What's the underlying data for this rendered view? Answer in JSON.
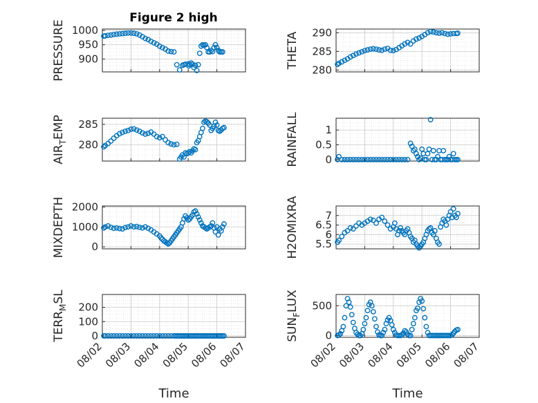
{
  "figure": {
    "title": "Figure 2 high",
    "marker_color": "#0072BD"
  },
  "chart_data": [
    {
      "type": "scatter",
      "ylabel": "PRESSURE",
      "title": "Figure 2 high",
      "ylim": [
        855,
        1005
      ],
      "yticks": [
        900,
        950,
        1000
      ],
      "xlim": [
        "08/02",
        "08/07"
      ],
      "xticks": [
        "08/02",
        "08/03",
        "08/04",
        "08/05",
        "08/06",
        "08/07"
      ],
      "show_xticklabels": false,
      "grid": true,
      "minor_grid": true,
      "x_days": [
        0.05,
        0.1,
        0.2,
        0.3,
        0.4,
        0.5,
        0.6,
        0.7,
        0.8,
        0.9,
        1.0,
        1.1,
        1.2,
        1.3,
        1.4,
        1.5,
        1.6,
        1.7,
        1.8,
        1.9,
        2.0,
        2.1,
        2.2,
        2.3,
        2.4,
        2.5,
        2.6,
        2.7,
        2.8,
        2.85,
        2.9,
        3.0,
        3.02,
        3.05,
        3.1,
        3.15,
        3.2,
        3.25,
        3.3,
        3.35,
        3.4,
        3.45,
        3.5,
        3.55,
        3.6,
        3.65,
        3.7,
        3.75,
        3.8,
        3.85,
        3.9,
        3.95,
        4.0,
        4.05,
        4.1,
        4.15,
        4.2
      ],
      "y": [
        980,
        981,
        983,
        984,
        986,
        987,
        988,
        989,
        990,
        991,
        991,
        990,
        988,
        984,
        978,
        972,
        968,
        962,
        957,
        952,
        945,
        940,
        935,
        928,
        926,
        925,
        880,
        862,
        878,
        880,
        882,
        883,
        876,
        881,
        886,
        882,
        870,
        878,
        860,
        880,
        920,
        945,
        950,
        948,
        950,
        940,
        925,
        925,
        930,
        926,
        940,
        950,
        940,
        930,
        925,
        925,
        925
      ]
    },
    {
      "type": "scatter",
      "ylabel": "THETA",
      "ylim": [
        279.5,
        291
      ],
      "yticks": [
        280,
        285,
        290
      ],
      "xlim": [
        "08/02",
        "08/07"
      ],
      "xticks": [
        "08/02",
        "08/03",
        "08/04",
        "08/05",
        "08/06",
        "08/07"
      ],
      "show_xticklabels": false,
      "grid": true,
      "minor_grid": true,
      "x_days": [
        0.05,
        0.1,
        0.2,
        0.3,
        0.4,
        0.5,
        0.6,
        0.7,
        0.8,
        0.9,
        1.0,
        1.1,
        1.2,
        1.3,
        1.4,
        1.5,
        1.6,
        1.7,
        1.8,
        1.9,
        2.0,
        2.1,
        2.2,
        2.3,
        2.4,
        2.5,
        2.6,
        2.7,
        2.8,
        2.9,
        3.0,
        3.1,
        3.2,
        3.3,
        3.4,
        3.5,
        3.6,
        3.7,
        3.8,
        3.9,
        4.0,
        4.1,
        4.2,
        4.25
      ],
      "y": [
        281.5,
        281.8,
        282.2,
        282.6,
        283.0,
        283.5,
        283.9,
        284.3,
        284.6,
        284.9,
        285.2,
        285.4,
        285.6,
        285.7,
        285.6,
        285.4,
        285.3,
        285.6,
        285.8,
        285.3,
        285.2,
        285.5,
        286.0,
        286.5,
        287.0,
        287.4,
        287.0,
        287.8,
        288.3,
        288.6,
        289.0,
        289.5,
        290.0,
        290.3,
        290.2,
        290.0,
        289.9,
        290.0,
        289.8,
        289.6,
        289.7,
        289.8,
        289.8,
        289.9
      ]
    },
    {
      "type": "scatter",
      "ylabel": "AIR_TEMP",
      "ylim": [
        276,
        286.5
      ],
      "yticks": [
        280,
        285
      ],
      "xlim": [
        "08/02",
        "08/07"
      ],
      "xticks": [
        "08/02",
        "08/03",
        "08/04",
        "08/05",
        "08/06",
        "08/07"
      ],
      "show_xticklabels": false,
      "grid": true,
      "minor_grid": true,
      "x_days": [
        0.05,
        0.1,
        0.2,
        0.3,
        0.4,
        0.5,
        0.6,
        0.7,
        0.8,
        0.9,
        1.0,
        1.1,
        1.2,
        1.3,
        1.4,
        1.5,
        1.6,
        1.7,
        1.8,
        1.9,
        2.0,
        2.1,
        2.2,
        2.3,
        2.4,
        2.5,
        2.6,
        2.7,
        2.75,
        2.8,
        2.85,
        2.9,
        2.95,
        3.0,
        3.05,
        3.1,
        3.15,
        3.2,
        3.25,
        3.3,
        3.35,
        3.4,
        3.45,
        3.5,
        3.55,
        3.6,
        3.65,
        3.7,
        3.75,
        3.8,
        3.85,
        3.9,
        3.95,
        4.0,
        4.05,
        4.1,
        4.15,
        4.2,
        4.25
      ],
      "y": [
        279.5,
        279.8,
        280.3,
        280.9,
        281.6,
        282.2,
        282.7,
        283.0,
        283.3,
        283.5,
        283.8,
        283.9,
        283.6,
        283.3,
        282.9,
        282.6,
        282.8,
        283.1,
        282.6,
        282.0,
        281.7,
        282.0,
        281.2,
        280.5,
        280.2,
        280.0,
        280.1,
        276.5,
        277.0,
        277.5,
        277.0,
        278.0,
        277.8,
        278.0,
        278.3,
        278.0,
        278.5,
        279.0,
        278.8,
        280.5,
        281.0,
        282.0,
        283.0,
        284.0,
        285.5,
        285.8,
        285.6,
        285.3,
        284.8,
        283.5,
        284.0,
        284.5,
        285.5,
        284.8,
        283.5,
        283.3,
        283.6,
        284.0,
        284.2
      ]
    },
    {
      "type": "scatter",
      "ylabel": "MIXDEPTH",
      "ylim": [
        -100,
        2050
      ],
      "yticks": [
        0,
        1000,
        2000
      ],
      "xlim": [
        "08/02",
        "08/07"
      ],
      "xticks": [
        "08/02",
        "08/03",
        "08/04",
        "08/05",
        "08/06",
        "08/07"
      ],
      "show_xticklabels": false,
      "grid": true,
      "minor_grid": true,
      "x_days": [
        0.05,
        0.1,
        0.2,
        0.3,
        0.4,
        0.5,
        0.6,
        0.7,
        0.8,
        0.9,
        1.0,
        1.1,
        1.2,
        1.3,
        1.4,
        1.5,
        1.6,
        1.7,
        1.8,
        1.9,
        2.0,
        2.05,
        2.1,
        2.15,
        2.2,
        2.25,
        2.3,
        2.35,
        2.4,
        2.45,
        2.5,
        2.55,
        2.6,
        2.65,
        2.7,
        2.75,
        2.8,
        2.85,
        2.9,
        2.95,
        3.0,
        3.05,
        3.1,
        3.15,
        3.2,
        3.25,
        3.3,
        3.35,
        3.4,
        3.45,
        3.5,
        3.55,
        3.6,
        3.65,
        3.7,
        3.75,
        3.8,
        3.85,
        3.9,
        3.95,
        4.0,
        4.05,
        4.1,
        4.15,
        4.2,
        4.25
      ],
      "y": [
        950,
        1000,
        1050,
        980,
        930,
        950,
        920,
        900,
        970,
        1000,
        1050,
        1000,
        1020,
        980,
        950,
        1000,
        930,
        850,
        750,
        650,
        550,
        450,
        380,
        300,
        250,
        200,
        150,
        200,
        300,
        400,
        500,
        600,
        700,
        800,
        900,
        1000,
        1200,
        1400,
        1550,
        1450,
        1350,
        1400,
        1500,
        1600,
        1750,
        1800,
        1650,
        1500,
        1350,
        1200,
        1050,
        1000,
        950,
        900,
        950,
        1000,
        1050,
        1200,
        950,
        750,
        1000,
        600,
        900,
        800,
        1000,
        1150
      ]
    },
    {
      "type": "scatter",
      "ylabel": "H2OMIXRA",
      "ylim": [
        5.25,
        7.5
      ],
      "yticks": [
        5.5,
        6,
        6.5,
        7
      ],
      "xlim": [
        "08/02",
        "08/07"
      ],
      "xticks": [
        "08/02",
        "08/03",
        "08/04",
        "08/05",
        "08/06",
        "08/07"
      ],
      "show_xticklabels": false,
      "grid": true,
      "minor_grid": true,
      "x_days": [
        0.05,
        0.1,
        0.2,
        0.3,
        0.4,
        0.5,
        0.6,
        0.7,
        0.8,
        0.9,
        1.0,
        1.1,
        1.2,
        1.3,
        1.4,
        1.5,
        1.6,
        1.7,
        1.8,
        1.9,
        2.0,
        2.05,
        2.1,
        2.15,
        2.2,
        2.25,
        2.3,
        2.35,
        2.4,
        2.45,
        2.5,
        2.55,
        2.6,
        2.65,
        2.7,
        2.75,
        2.8,
        2.85,
        2.9,
        2.95,
        3.0,
        3.05,
        3.1,
        3.15,
        3.2,
        3.25,
        3.3,
        3.35,
        3.4,
        3.45,
        3.5,
        3.55,
        3.6,
        3.65,
        3.7,
        3.75,
        3.8,
        3.85,
        3.9,
        3.95,
        4.0,
        4.05,
        4.1,
        4.15,
        4.2,
        4.25
      ],
      "y": [
        5.6,
        5.7,
        5.9,
        6.1,
        6.2,
        6.35,
        6.3,
        6.45,
        6.6,
        6.5,
        6.6,
        6.7,
        6.8,
        6.75,
        6.6,
        6.8,
        6.9,
        6.7,
        6.5,
        6.3,
        6.4,
        6.6,
        6.3,
        6.0,
        6.2,
        6.35,
        6.2,
        6.1,
        6.0,
        6.2,
        6.3,
        6.1,
        5.9,
        5.8,
        5.6,
        5.7,
        5.5,
        5.4,
        5.3,
        5.4,
        5.5,
        5.6,
        5.8,
        6.0,
        6.2,
        6.3,
        6.35,
        6.1,
        6.0,
        6.2,
        5.8,
        5.6,
        5.5,
        6.4,
        6.6,
        6.8,
        6.7,
        6.5,
        6.8,
        7.0,
        7.2,
        6.9,
        7.35,
        7.0,
        6.9,
        7.1
      ]
    },
    {
      "type": "scatter",
      "ylabel": "RAINFALL",
      "ylim": [
        -0.05,
        1.4
      ],
      "yticks": [
        0,
        0.5,
        1
      ],
      "xlim": [
        "08/02",
        "08/07"
      ],
      "xticks": [
        "08/02",
        "08/03",
        "08/04",
        "08/05",
        "08/06",
        "08/07"
      ],
      "show_xticklabels": false,
      "grid": true,
      "minor_grid": true,
      "x_days": [
        0.05,
        0.1,
        0.2,
        0.3,
        0.4,
        0.5,
        0.6,
        0.7,
        0.8,
        0.9,
        1.0,
        1.1,
        1.2,
        1.3,
        1.4,
        1.5,
        1.6,
        1.7,
        1.8,
        1.9,
        2.0,
        2.1,
        2.2,
        2.3,
        2.4,
        2.5,
        2.6,
        2.65,
        2.7,
        2.75,
        2.8,
        2.85,
        2.9,
        2.95,
        3.0,
        3.05,
        3.1,
        3.15,
        3.2,
        3.25,
        3.3,
        3.35,
        3.4,
        3.45,
        3.5,
        3.55,
        3.6,
        3.65,
        3.7,
        3.75,
        3.8,
        3.85,
        3.9,
        3.95,
        4.0,
        4.05,
        4.1,
        4.15,
        4.2,
        4.25
      ],
      "y": [
        0,
        0.1,
        0,
        0,
        0,
        0,
        0,
        0,
        0,
        0,
        0,
        0,
        0,
        0,
        0,
        0,
        0,
        0,
        0,
        0,
        0,
        0,
        0,
        0,
        0,
        0,
        0.55,
        0.45,
        0.3,
        0.35,
        0.2,
        0.1,
        0,
        0.05,
        0.35,
        0.2,
        0,
        0,
        0.2,
        0.35,
        1.35,
        0,
        0.3,
        0,
        0,
        0.1,
        0.3,
        0,
        0,
        0.3,
        0,
        0,
        0,
        0.1,
        0,
        0,
        0.2,
        0,
        0,
        0
      ]
    },
    {
      "type": "scatter",
      "ylabel": "TERR_MSL",
      "ylim": [
        -10,
        290
      ],
      "yticks": [
        0,
        100,
        200
      ],
      "xlim": [
        "08/02",
        "08/07"
      ],
      "xticks": [
        "08/02",
        "08/03",
        "08/04",
        "08/05",
        "08/06",
        "08/07"
      ],
      "show_xticklabels": true,
      "xlabel": "Time",
      "grid": true,
      "minor_grid": true,
      "x_days": [
        0.05,
        0.1,
        0.2,
        0.3,
        0.4,
        0.5,
        0.6,
        0.7,
        0.8,
        0.9,
        1.0,
        1.1,
        1.2,
        1.3,
        1.4,
        1.5,
        1.6,
        1.7,
        1.8,
        1.9,
        2.0,
        2.1,
        2.2,
        2.3,
        2.4,
        2.5,
        2.55,
        2.6,
        2.65,
        2.7,
        2.75,
        2.8,
        2.85,
        2.9,
        2.95,
        3.0,
        3.05,
        3.1,
        3.15,
        3.2,
        3.25,
        3.3,
        3.35,
        3.4,
        3.45,
        3.5,
        3.55,
        3.6,
        3.65,
        3.7,
        3.75,
        3.8,
        3.85,
        3.9,
        3.95,
        4.0,
        4.05,
        4.1,
        4.15,
        4.2,
        4.25
      ],
      "y": [
        0,
        0,
        0,
        0,
        0,
        0,
        0,
        0,
        0,
        0,
        0,
        0,
        0,
        0,
        0,
        0,
        0,
        0,
        0,
        0,
        0,
        0,
        0,
        0,
        0,
        0,
        0,
        0,
        0,
        0,
        0,
        0,
        0,
        0,
        0,
        0,
        0,
        0,
        0,
        0,
        0,
        0,
        0,
        0,
        0,
        0,
        0,
        0,
        0,
        0,
        0,
        0,
        0,
        0,
        0,
        0,
        0,
        0,
        0,
        0,
        0
      ]
    },
    {
      "type": "scatter",
      "ylabel": "SUN_FLUX",
      "ylim": [
        -30,
        690
      ],
      "yticks": [
        0,
        500
      ],
      "xlim": [
        "08/02",
        "08/07"
      ],
      "xticks": [
        "08/02",
        "08/03",
        "08/04",
        "08/05",
        "08/06",
        "08/07"
      ],
      "show_xticklabels": true,
      "xlabel": "Time",
      "grid": true,
      "minor_grid": true,
      "x_days": [
        0.05,
        0.1,
        0.15,
        0.2,
        0.25,
        0.3,
        0.35,
        0.4,
        0.45,
        0.5,
        0.55,
        0.6,
        0.65,
        0.7,
        0.75,
        0.8,
        0.85,
        0.9,
        0.95,
        1.0,
        1.05,
        1.1,
        1.15,
        1.2,
        1.25,
        1.3,
        1.35,
        1.4,
        1.45,
        1.5,
        1.55,
        1.6,
        1.65,
        1.7,
        1.75,
        1.8,
        1.85,
        1.9,
        1.95,
        2.0,
        2.05,
        2.1,
        2.15,
        2.2,
        2.25,
        2.3,
        2.35,
        2.4,
        2.45,
        2.5,
        2.55,
        2.6,
        2.65,
        2.7,
        2.75,
        2.8,
        2.85,
        2.9,
        2.95,
        3.0,
        3.05,
        3.1,
        3.15,
        3.2,
        3.25,
        3.3,
        3.35,
        3.4,
        3.45,
        3.5,
        3.55,
        3.6,
        3.65,
        3.7,
        3.75,
        3.8,
        3.85,
        3.9,
        3.95,
        4.0,
        4.05,
        4.1,
        4.15,
        4.2,
        4.25
      ],
      "y": [
        0,
        10,
        30,
        80,
        150,
        300,
        500,
        620,
        560,
        480,
        350,
        220,
        120,
        50,
        20,
        0,
        0,
        30,
        100,
        200,
        300,
        420,
        520,
        560,
        500,
        400,
        280,
        150,
        60,
        10,
        0,
        0,
        50,
        100,
        200,
        260,
        300,
        250,
        180,
        100,
        50,
        10,
        0,
        0,
        0,
        10,
        40,
        80,
        60,
        20,
        0,
        0,
        100,
        200,
        300,
        420,
        460,
        560,
        620,
        580,
        450,
        300,
        150,
        50,
        0,
        0,
        0,
        0,
        0,
        0,
        0,
        0,
        0,
        0,
        0,
        0,
        0,
        0,
        0,
        0,
        10,
        40,
        70,
        90,
        100
      ]
    }
  ]
}
